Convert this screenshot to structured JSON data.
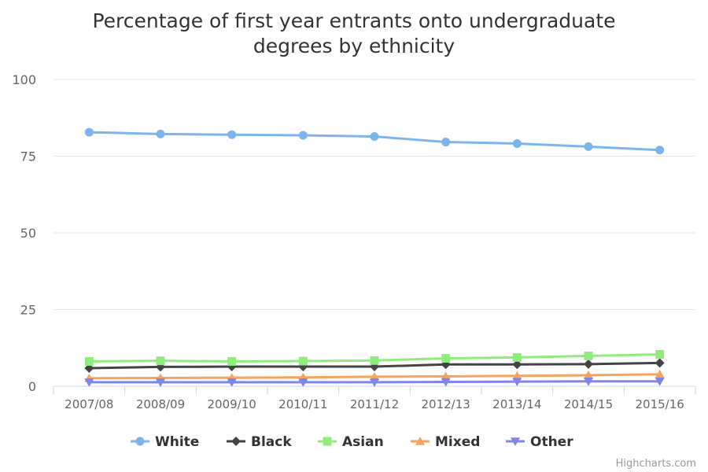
{
  "chart_data": {
    "type": "line",
    "title": "Percentage of first year entrants onto undergraduate degrees by ethnicity",
    "title_lines": [
      "Percentage of first year entrants onto undergraduate",
      "degrees by ethnicity"
    ],
    "categories": [
      "2007/08",
      "2008/09",
      "2009/10",
      "2010/11",
      "2011/12",
      "2012/13",
      "2013/14",
      "2014/15",
      "2015/16"
    ],
    "y_ticks": [
      "0",
      "25",
      "50",
      "75",
      "100"
    ],
    "ylim": [
      0,
      100
    ],
    "grid": true,
    "legend_position": "bottom-center",
    "series": [
      {
        "name": "White",
        "color": "#7cb5ec",
        "marker": "circle",
        "values": [
          82.8,
          82.2,
          82.0,
          81.8,
          81.4,
          79.6,
          79.1,
          78.1,
          77.0
        ]
      },
      {
        "name": "Black",
        "color": "#434348",
        "marker": "diamond",
        "values": [
          5.9,
          6.3,
          6.4,
          6.4,
          6.4,
          7.1,
          7.1,
          7.2,
          7.6
        ]
      },
      {
        "name": "Asian",
        "color": "#90ed7d",
        "marker": "square",
        "values": [
          8.1,
          8.3,
          8.1,
          8.2,
          8.4,
          9.1,
          9.4,
          9.9,
          10.4
        ]
      },
      {
        "name": "Mixed",
        "color": "#f7a35c",
        "marker": "triangle",
        "values": [
          2.6,
          2.7,
          2.8,
          2.9,
          3.1,
          3.2,
          3.4,
          3.6,
          3.9
        ]
      },
      {
        "name": "Other",
        "color": "#8085e9",
        "marker": "triangle-down",
        "values": [
          1.3,
          1.3,
          1.3,
          1.3,
          1.3,
          1.4,
          1.5,
          1.6,
          1.6
        ]
      }
    ]
  },
  "credits": "Highcharts.com"
}
